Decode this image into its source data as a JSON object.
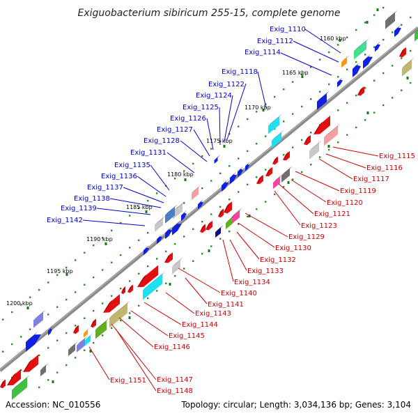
{
  "title": "Exiguobacterium sibiricum 255-15, complete genome",
  "accession_text": "Accession: NC_010556",
  "summary_text": "Topology: circular; Length: 3,034,136 bp; Genes: 3,104",
  "colors": {
    "backbone": "#8a8a8a",
    "tick": "#2a8a2a",
    "blue_label": "#0000cc",
    "red_label": "#cc0000",
    "forward_gene": "#1020e0",
    "reverse_gene": "#e01010"
  },
  "kbp_ticks": [
    "1160 kbp",
    "1165 kbp",
    "1170 kbp",
    "1175 kbp",
    "1180 kbp",
    "1185 kbp",
    "1190 kbp",
    "1195 kbp",
    "1200 kbp"
  ],
  "labels_top": [
    "Exig_1110",
    "Exig_1112",
    "Exig_1114",
    "Exig_1118",
    "Exig_1122",
    "Exig_1124",
    "Exig_1125",
    "Exig_1126",
    "Exig_1127",
    "Exig_1128",
    "Exig_1131",
    "Exig_1135",
    "Exig_1136",
    "Exig_1137",
    "Exig_1138",
    "Exig_1139",
    "Exig_1142"
  ],
  "labels_bottom": [
    "Exig_1115",
    "Exig_1116",
    "Exig_1117",
    "Exig_1119",
    "Exig_1120",
    "Exig_1121",
    "Exig_1123",
    "Exig_1129",
    "Exig_1130",
    "Exig_1132",
    "Exig_1133",
    "Exig_1134",
    "Exig_1140",
    "Exig_1141",
    "Exig_1143",
    "Exig_1144",
    "Exig_1145",
    "Exig_1146",
    "Exig_1147",
    "Exig_1148",
    "Exig_1151"
  ]
}
